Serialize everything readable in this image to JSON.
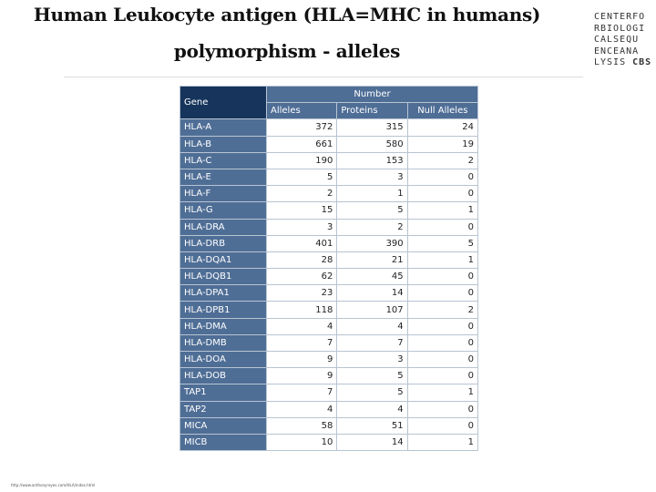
{
  "title": {
    "line1": "Human Leukocyte antigen (HLA=MHC in humans)",
    "line2": "polymorphism - alleles"
  },
  "logo": {
    "lines": [
      "CENTERFO",
      "RBIOLOGI",
      "CALSEQU",
      "ENCEANA"
    ],
    "last_prefix": "LYSIS",
    "last_highlight": "CBS"
  },
  "table": {
    "gene_header": "Gene",
    "number_header": "Number",
    "col_alleles": "Alleles",
    "col_proteins": "Proteins",
    "col_null": "Null Alleles",
    "rows": [
      {
        "gene": "HLA-A",
        "alleles": "372",
        "proteins": "315",
        "null": "24"
      },
      {
        "gene": "HLA-B",
        "alleles": "661",
        "proteins": "580",
        "null": "19"
      },
      {
        "gene": "HLA-C",
        "alleles": "190",
        "proteins": "153",
        "null": "2"
      },
      {
        "gene": "HLA-E",
        "alleles": "5",
        "proteins": "3",
        "null": "0"
      },
      {
        "gene": "HLA-F",
        "alleles": "2",
        "proteins": "1",
        "null": "0"
      },
      {
        "gene": "HLA-G",
        "alleles": "15",
        "proteins": "5",
        "null": "1"
      },
      {
        "gene": "HLA-DRA",
        "alleles": "3",
        "proteins": "2",
        "null": "0"
      },
      {
        "gene": "HLA-DRB",
        "alleles": "401",
        "proteins": "390",
        "null": "5"
      },
      {
        "gene": "HLA-DQA1",
        "alleles": "28",
        "proteins": "21",
        "null": "1"
      },
      {
        "gene": "HLA-DQB1",
        "alleles": "62",
        "proteins": "45",
        "null": "0"
      },
      {
        "gene": "HLA-DPA1",
        "alleles": "23",
        "proteins": "14",
        "null": "0"
      },
      {
        "gene": "HLA-DPB1",
        "alleles": "118",
        "proteins": "107",
        "null": "2"
      },
      {
        "gene": "HLA-DMA",
        "alleles": "4",
        "proteins": "4",
        "null": "0"
      },
      {
        "gene": "HLA-DMB",
        "alleles": "7",
        "proteins": "7",
        "null": "0"
      },
      {
        "gene": "HLA-DOA",
        "alleles": "9",
        "proteins": "3",
        "null": "0"
      },
      {
        "gene": "HLA-DOB",
        "alleles": "9",
        "proteins": "5",
        "null": "0"
      },
      {
        "gene": "TAP1",
        "alleles": "7",
        "proteins": "5",
        "null": "1"
      },
      {
        "gene": "TAP2",
        "alleles": "4",
        "proteins": "4",
        "null": "0"
      },
      {
        "gene": "MICA",
        "alleles": "58",
        "proteins": "51",
        "null": "0"
      },
      {
        "gene": "MICB",
        "alleles": "10",
        "proteins": "14",
        "null": "1"
      }
    ]
  },
  "footer": {
    "url": "http://www.anthonyreyes.com/HLA/index.html"
  },
  "colors": {
    "gene_header_bg": "#17355c",
    "header_bg": "#4f6e96",
    "gene_cell_bg": "#4f6e96",
    "border": "#b8c4d2"
  }
}
